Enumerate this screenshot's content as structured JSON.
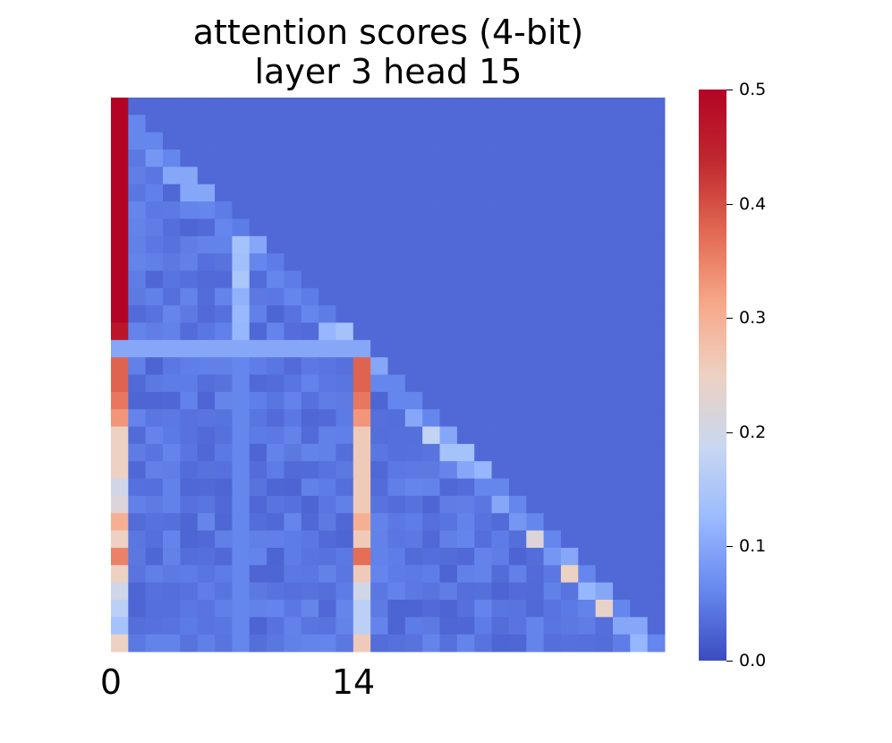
{
  "title_line1": "attention scores (4-bit)",
  "title_line2": "layer 3 head 15",
  "colormap": {
    "name": "coolwarm",
    "stops": [
      "#3b4cc0",
      "#6788ee",
      "#9abbff",
      "#c9d7f0",
      "#edd1c2",
      "#f7a889",
      "#e26952",
      "#c0282f",
      "#b40426"
    ]
  },
  "chart_data": {
    "type": "heatmap",
    "title": "attention scores (4-bit)\nlayer 3 head 15",
    "n_rows": 32,
    "n_cols": 32,
    "xtick_labels": [
      {
        "index": 0,
        "label": "0"
      },
      {
        "index": 14,
        "label": "14"
      }
    ],
    "vmin": 0.0,
    "vmax": 0.5,
    "colorbar_ticks": [
      "0.0",
      "0.1",
      "0.2",
      "0.3",
      "0.4",
      "0.5"
    ],
    "masked": "upper triangle (j > i) shown as 0.0",
    "sink_columns": {
      "col0": [
        0.5,
        0.5,
        0.5,
        0.5,
        0.5,
        0.5,
        0.5,
        0.5,
        0.5,
        0.5,
        0.5,
        0.5,
        0.5,
        0.47,
        0.1,
        0.38,
        0.38,
        0.36,
        0.33,
        0.25,
        0.25,
        0.25,
        0.2,
        0.22,
        0.3,
        0.25,
        0.35,
        0.25,
        0.2,
        0.17,
        0.14,
        0.25
      ],
      "col14": [
        0.1,
        0.38,
        0.38,
        0.36,
        0.33,
        0.26,
        0.26,
        0.26,
        0.26,
        0.26,
        0.3,
        0.26,
        0.37,
        0.26,
        0.2,
        0.17,
        0.17,
        0.26
      ]
    },
    "diagonal": [
      0.5,
      0.06,
      0.06,
      0.06,
      0.1,
      0.1,
      0.05,
      0.05,
      0.1,
      0.05,
      0.05,
      0.05,
      0.05,
      0.14,
      0.1,
      0.1,
      0.06,
      0.06,
      0.06,
      0.1,
      0.14,
      0.12,
      0.06,
      0.06,
      0.06,
      0.06,
      0.1,
      0.06,
      0.1,
      0.06,
      0.1,
      0.06
    ],
    "near_diagonal": [
      0.0,
      0.06,
      0.06,
      0.08,
      0.1,
      0.1,
      0.06,
      0.06,
      0.14,
      0.06,
      0.06,
      0.06,
      0.06,
      0.12,
      0.1,
      0.06,
      0.06,
      0.06,
      0.1,
      0.18,
      0.14,
      0.1,
      0.06,
      0.1,
      0.08,
      0.22,
      0.08,
      0.25,
      0.12,
      0.24,
      0.1,
      0.12
    ],
    "row14_values": "approx 0.1 across columns 0-14",
    "background_value": 0.03
  }
}
